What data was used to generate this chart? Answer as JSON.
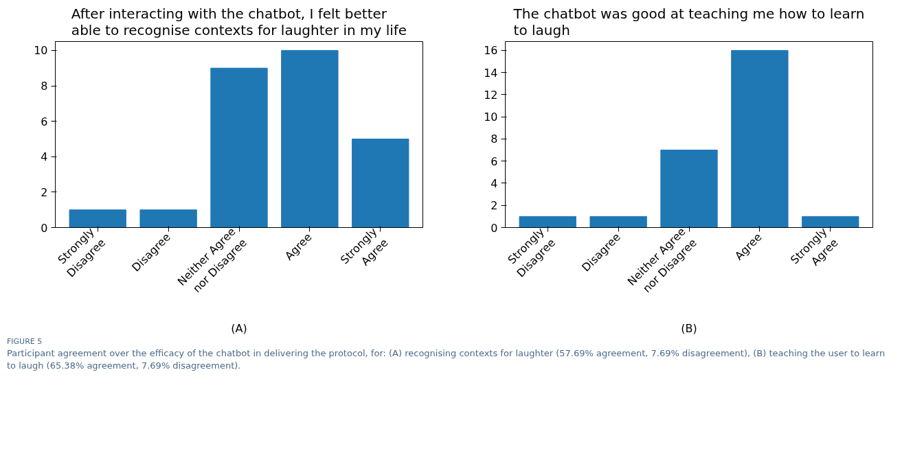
{
  "chart_data": [
    {
      "type": "bar",
      "title": "After interacting with the chatbot, I felt better able to recognise contexts for laughter in my life",
      "xlabel": "(A)",
      "categories": [
        "Strongly Disagree",
        "Disagree",
        "Neither Agree nor Disagree",
        "Agree",
        "Strongly Agree"
      ],
      "values": [
        1,
        1,
        9,
        10,
        5
      ],
      "color": "#1f77b4",
      "ylim": [
        0,
        10.5
      ],
      "yticks": [
        0,
        2,
        4,
        6,
        8,
        10
      ],
      "grid": false,
      "annotations": [
        "FIGURE 5",
        "Participant agreement over the efficacy of the chatbot in delivering the protocol, for: (A) recognising contexts for laughter (57.69% agreement, 7.69% disagreement), (B) teaching the user to learn to laugh (65.38% agreement, 7.69% disagreement)."
      ]
    },
    {
      "type": "bar",
      "title": "The chatbot was good at teaching me how to learn to laugh",
      "xlabel": "(B)",
      "categories": [
        "Strongly Disagree",
        "Disagree",
        "Neither Agree nor Disagree",
        "Agree",
        "Strongly Agree"
      ],
      "values": [
        1,
        1,
        7,
        16,
        1
      ],
      "color": "#1f77b4",
      "ylim": [
        0,
        16.8
      ],
      "yticks": [
        0,
        2,
        4,
        6,
        8,
        10,
        12,
        14,
        16
      ],
      "grid": false
    }
  ]
}
